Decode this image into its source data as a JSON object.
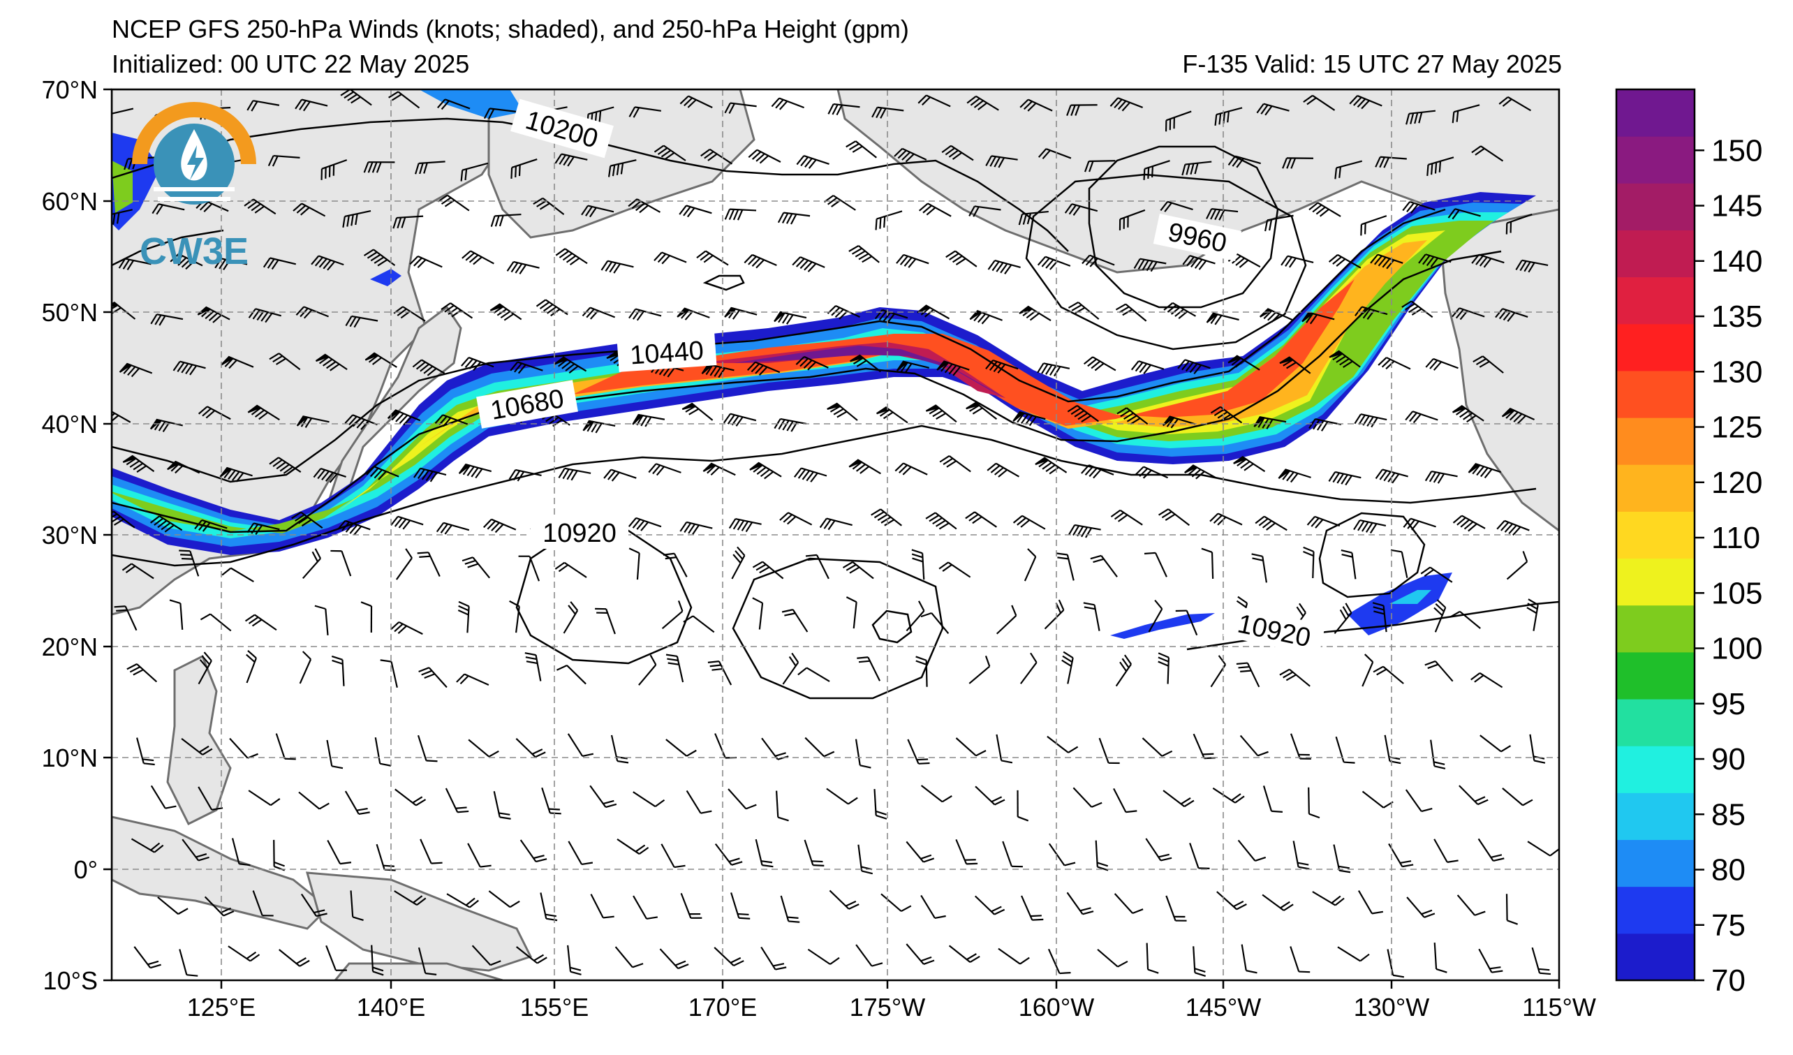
{
  "header": {
    "title": "NCEP GFS 250-hPa Winds (knots; shaded), and 250-hPa Height (gpm)",
    "initialized": "Initialized: 00 UTC 22 May 2025",
    "valid": "F-135  Valid: 15 UTC 27 May 2025"
  },
  "logo": {
    "text": "CW3E"
  },
  "map": {
    "lat_ticks": [
      "70°N",
      "60°N",
      "50°N",
      "40°N",
      "30°N",
      "20°N",
      "10°N",
      "0°",
      "10°S"
    ],
    "lon_ticks": [
      "125°E",
      "140°E",
      "155°E",
      "170°E",
      "175°W",
      "160°W",
      "145°W",
      "130°W",
      "115°W"
    ],
    "contour_labels": [
      "10200",
      "9960",
      "10440",
      "10680",
      "10920",
      "10920"
    ],
    "colors": {
      "land": "#e6e6e6",
      "coast": "#6e6e6e",
      "grid": "#8a8a8a",
      "contour": "#000000"
    }
  },
  "colorbar": {
    "labels": [
      "150",
      "145",
      "140",
      "135",
      "130",
      "125",
      "120",
      "110",
      "105",
      "100",
      "95",
      "90",
      "85",
      "80",
      "75",
      "70"
    ],
    "colors": [
      "#1c1ccc",
      "#1e3af0",
      "#1e8cf5",
      "#20c8f0",
      "#20f0e0",
      "#22e0a0",
      "#1fbf2a",
      "#7ecc1e",
      "#eef21e",
      "#ffd820",
      "#ffb41e",
      "#ff8c1e",
      "#ff5020",
      "#ff2020",
      "#e02040",
      "#c01c52",
      "#a31c66",
      "#8a1a80",
      "#701890"
    ]
  }
}
